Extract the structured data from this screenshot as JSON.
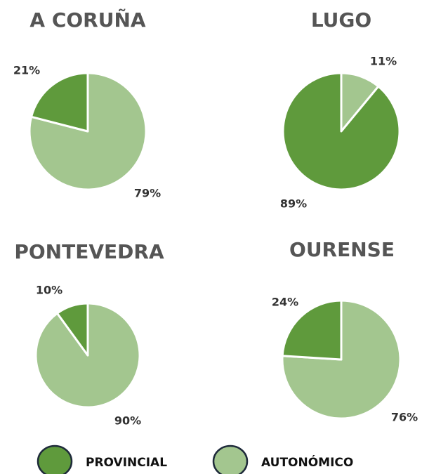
{
  "chart_data": [
    {
      "type": "pie",
      "title": "A CORUÑA",
      "values": [
        21,
        79
      ],
      "value_labels": [
        "21%",
        "79%"
      ]
    },
    {
      "type": "pie",
      "title": "LUGO",
      "values": [
        89,
        11
      ],
      "value_labels": [
        "89%",
        "11%"
      ]
    },
    {
      "type": "pie",
      "title": "PONTEVEDRA",
      "values": [
        10,
        90
      ],
      "value_labels": [
        "10%",
        "90%"
      ]
    },
    {
      "type": "pie",
      "title": "OURENSE",
      "values": [
        24,
        76
      ],
      "value_labels": [
        "24%",
        "76%"
      ]
    }
  ],
  "legend": {
    "items": [
      {
        "name": "PROVINCIAL",
        "color": "#5f9a3c"
      },
      {
        "name": "AUTONÓMICO",
        "color": "#a3c68f"
      }
    ]
  }
}
